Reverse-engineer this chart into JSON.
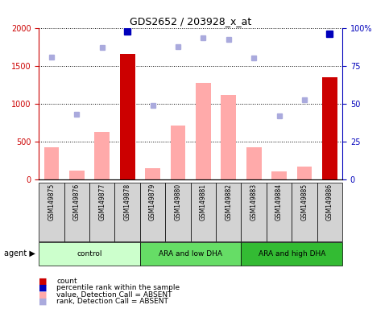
{
  "title": "GDS2652 / 203928_x_at",
  "samples": [
    "GSM149875",
    "GSM149876",
    "GSM149877",
    "GSM149878",
    "GSM149879",
    "GSM149880",
    "GSM149881",
    "GSM149882",
    "GSM149883",
    "GSM149884",
    "GSM149885",
    "GSM149886"
  ],
  "groups": [
    {
      "label": "control",
      "indices": [
        0,
        1,
        2,
        3
      ]
    },
    {
      "label": "ARA and low DHA",
      "indices": [
        4,
        5,
        6,
        7
      ]
    },
    {
      "label": "ARA and high DHA",
      "indices": [
        8,
        9,
        10,
        11
      ]
    }
  ],
  "group_colors": [
    "#ccffcc",
    "#66dd66",
    "#33bb33"
  ],
  "count_bars": [
    null,
    null,
    null,
    1650,
    null,
    null,
    null,
    null,
    null,
    null,
    null,
    1350
  ],
  "value_bars": [
    420,
    110,
    620,
    null,
    150,
    710,
    1270,
    1110,
    420,
    100,
    165,
    null
  ],
  "percentile_rank_left": [
    null,
    null,
    null,
    1950,
    null,
    null,
    null,
    null,
    null,
    null,
    null,
    1920
  ],
  "rank_absent_left": [
    1610,
    860,
    1740,
    null,
    975,
    1750,
    1870,
    1850,
    1600,
    840,
    1050,
    null
  ],
  "ylim_left": [
    0,
    2000
  ],
  "ylim_right": [
    0,
    100
  ],
  "yticks_left": [
    0,
    500,
    1000,
    1500,
    2000
  ],
  "yticks_right": [
    0,
    25,
    50,
    75,
    100
  ],
  "bar_color_count": "#cc0000",
  "bar_color_value": "#ffaaaa",
  "dot_color_percentile": "#0000bb",
  "dot_color_rank": "#aaaadd",
  "left_axis_color": "#cc0000",
  "right_axis_color": "#0000bb"
}
